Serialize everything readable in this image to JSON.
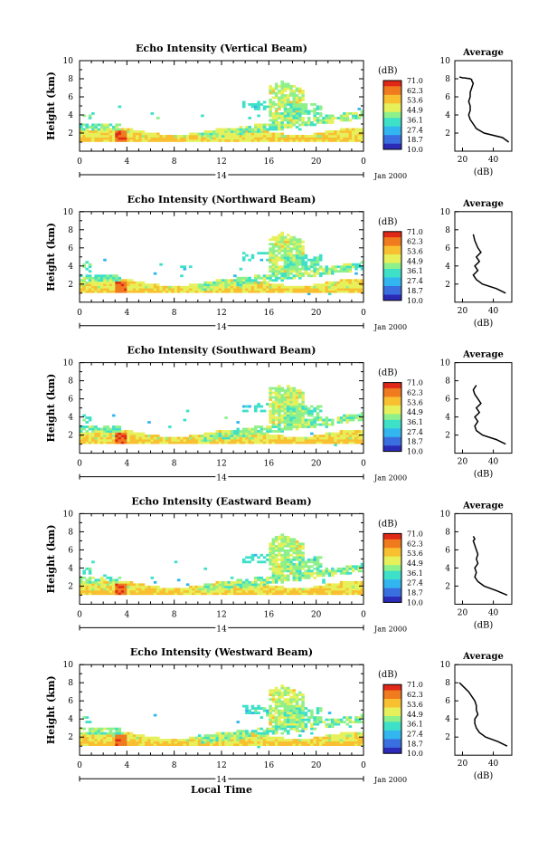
{
  "figure": {
    "ylabel": "Height (km)",
    "xlabel": "Local Time",
    "date_label": "Jan 2000",
    "day_label": "14",
    "unit_label": "(dB)",
    "avg_title": "Average",
    "avg_xlabel": "(dB)"
  },
  "colorbar": {
    "ticks": [
      "71.0",
      "62.3",
      "53.6",
      "44.9",
      "36.1",
      "27.4",
      "18.7",
      "10.0"
    ],
    "colors": [
      "#2b2bb8",
      "#3a6fe0",
      "#33b6f0",
      "#3ee0c8",
      "#8ef08a",
      "#e6f05a",
      "#f8c030",
      "#f07a1e",
      "#e02818"
    ]
  },
  "chart_data": [
    {
      "type": "heatmap",
      "title": "Echo Intensity (Vertical Beam)",
      "xlabel": "",
      "ylabel": "Height (km)",
      "xlim": [
        0,
        24
      ],
      "ylim": [
        0,
        10
      ],
      "x_ticks": [
        "0",
        "4",
        "8",
        "12",
        "16",
        "20",
        "0"
      ],
      "y_ticks": [
        "2",
        "4",
        "6",
        "8",
        "10"
      ],
      "colorbar_range_dB": [
        10.0,
        71.0
      ],
      "profile": {
        "title": "Average",
        "xlabel": "(dB)",
        "x_ticks": [
          "20",
          "40"
        ],
        "xlim": [
          15,
          52
        ],
        "dB": [
          50,
          46,
          34,
          29,
          27,
          25,
          24,
          25,
          25,
          24,
          25,
          25,
          26,
          27,
          26,
          26,
          25,
          21,
          20,
          18,
          18
        ],
        "height_km": [
          1.0,
          1.5,
          2.0,
          2.5,
          3.0,
          3.5,
          4.0,
          4.5,
          5.0,
          5.5,
          6.0,
          6.5,
          7.0,
          7.5,
          7.8,
          7.9,
          8.0,
          8.1,
          8.1,
          8.2,
          8.2
        ]
      }
    },
    {
      "type": "heatmap",
      "title": "Echo Intensity (Northward Beam)",
      "xlabel": "",
      "ylabel": "Height (km)",
      "xlim": [
        0,
        24
      ],
      "ylim": [
        0,
        10
      ],
      "x_ticks": [
        "0",
        "4",
        "8",
        "12",
        "16",
        "20",
        "0"
      ],
      "y_ticks": [
        "2",
        "4",
        "6",
        "8",
        "10"
      ],
      "colorbar_range_dB": [
        10.0,
        71.0
      ],
      "profile": {
        "title": "Average",
        "xlabel": "(dB)",
        "x_ticks": [
          "20",
          "40"
        ],
        "xlim": [
          15,
          52
        ],
        "dB": [
          48,
          42,
          33,
          29,
          27,
          30,
          28,
          31,
          29,
          32,
          30,
          28,
          27
        ],
        "height_km": [
          1.0,
          1.5,
          2.0,
          2.5,
          3.0,
          3.5,
          4.0,
          4.5,
          5.0,
          5.5,
          6.0,
          6.8,
          7.5
        ]
      }
    },
    {
      "type": "heatmap",
      "title": "Echo Intensity (Southward Beam)",
      "xlabel": "",
      "ylabel": "Height (km)",
      "xlim": [
        0,
        24
      ],
      "ylim": [
        0,
        10
      ],
      "x_ticks": [
        "0",
        "4",
        "8",
        "12",
        "16",
        "20",
        "0"
      ],
      "y_ticks": [
        "2",
        "4",
        "6",
        "8",
        "10"
      ],
      "colorbar_range_dB": [
        10.0,
        71.0
      ],
      "profile": {
        "title": "Average",
        "xlabel": "(dB)",
        "x_ticks": [
          "20",
          "40"
        ],
        "xlim": [
          15,
          52
        ],
        "dB": [
          48,
          42,
          33,
          29,
          28,
          30,
          28,
          31,
          29,
          32,
          30,
          28,
          27,
          29
        ],
        "height_km": [
          1.0,
          1.5,
          2.0,
          2.5,
          3.0,
          3.5,
          4.0,
          4.5,
          5.0,
          5.5,
          6.0,
          6.5,
          7.0,
          7.5
        ]
      }
    },
    {
      "type": "heatmap",
      "title": "Echo Intensity (Eastward Beam)",
      "xlabel": "",
      "ylabel": "Height (km)",
      "xlim": [
        0,
        24
      ],
      "ylim": [
        0,
        10
      ],
      "x_ticks": [
        "0",
        "4",
        "8",
        "12",
        "16",
        "20",
        "0"
      ],
      "y_ticks": [
        "2",
        "4",
        "6",
        "8",
        "10"
      ],
      "colorbar_range_dB": [
        10.0,
        71.0
      ],
      "profile": {
        "title": "Average",
        "xlabel": "(dB)",
        "x_ticks": [
          "20",
          "40"
        ],
        "xlim": [
          15,
          52
        ],
        "dB": [
          49,
          42,
          34,
          30,
          28,
          29,
          28,
          30,
          29,
          30,
          29,
          28,
          27,
          28,
          27
        ],
        "height_km": [
          1.0,
          1.5,
          2.0,
          2.5,
          3.0,
          3.5,
          4.0,
          4.5,
          5.0,
          5.5,
          6.0,
          6.5,
          7.0,
          7.2,
          7.5
        ]
      }
    },
    {
      "type": "heatmap",
      "title": "Echo Intensity (Westward Beam)",
      "xlabel": "Local Time",
      "ylabel": "Height (km)",
      "xlim": [
        0,
        24
      ],
      "ylim": [
        0,
        10
      ],
      "x_ticks": [
        "0",
        "4",
        "8",
        "12",
        "16",
        "20",
        "0"
      ],
      "y_ticks": [
        "2",
        "4",
        "6",
        "8",
        "10"
      ],
      "colorbar_range_dB": [
        10.0,
        71.0
      ],
      "profile": {
        "title": "Average",
        "xlabel": "(dB)",
        "x_ticks": [
          "20",
          "40"
        ],
        "xlim": [
          15,
          52
        ],
        "dB": [
          49,
          43,
          35,
          31,
          29,
          28,
          28,
          30,
          29,
          29,
          28,
          26,
          24,
          21,
          18
        ],
        "height_km": [
          1.0,
          1.5,
          2.0,
          2.5,
          3.0,
          3.5,
          4.0,
          4.5,
          5.0,
          5.5,
          6.0,
          6.5,
          7.0,
          7.5,
          8.0
        ]
      }
    }
  ]
}
